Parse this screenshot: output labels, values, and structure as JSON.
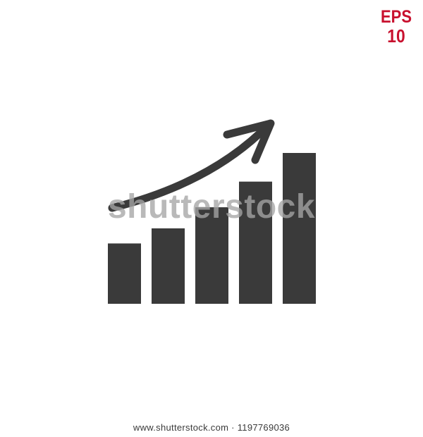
{
  "badge": {
    "line1": "EPS",
    "line2": "10",
    "color": "#c8102e"
  },
  "icon": {
    "name": "bar-chart-growth-icon",
    "bar_color": "#3a3a3a",
    "bars": [
      0.4,
      0.5,
      0.64,
      0.81,
      1.0
    ]
  },
  "watermark": {
    "text": "shutterstock"
  },
  "footer": {
    "site": "www.shutterstock.com",
    "separator": "·",
    "image_id": "1197769036"
  }
}
